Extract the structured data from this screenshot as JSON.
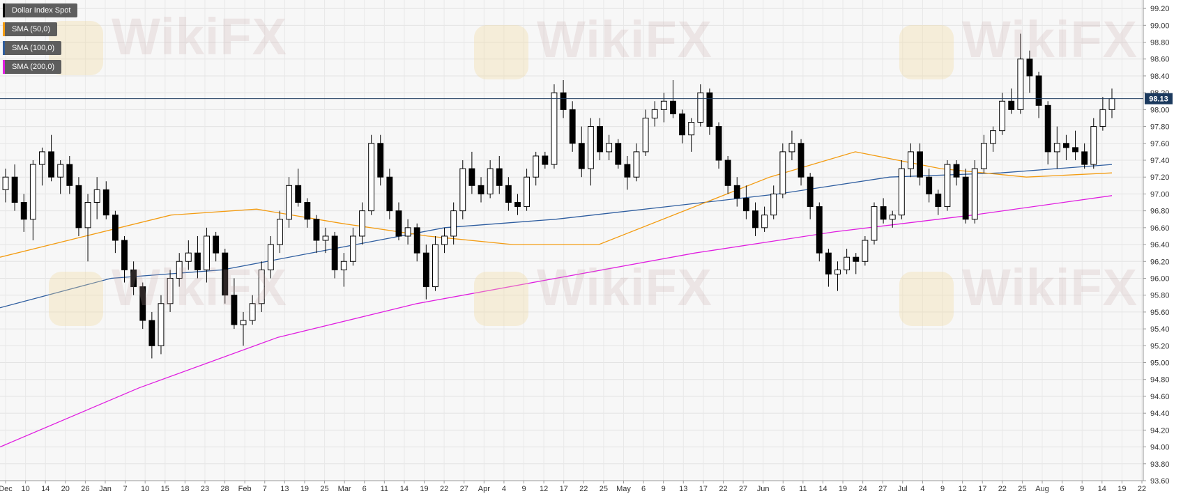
{
  "legend": [
    {
      "label": "Dollar Index Spot",
      "color": "#000000"
    },
    {
      "label": "SMA (50,0)",
      "color": "#f39c12"
    },
    {
      "label": "SMA (100,0)",
      "color": "#2e5d9f"
    },
    {
      "label": "SMA (200,0)",
      "color": "#e01ee0"
    }
  ],
  "watermark_text": "WikiFX",
  "current_price_label": "98.13",
  "chart_data": {
    "type": "candlestick",
    "title": "",
    "ylim": [
      93.6,
      99.3
    ],
    "y_ticks": [
      "93.60",
      "93.80",
      "94.00",
      "94.20",
      "94.40",
      "94.60",
      "94.80",
      "95.00",
      "95.20",
      "95.40",
      "95.60",
      "95.80",
      "96.00",
      "96.20",
      "96.40",
      "96.60",
      "96.80",
      "97.00",
      "97.20",
      "97.40",
      "97.60",
      "97.80",
      "98.00",
      "98.20",
      "98.40",
      "98.60",
      "98.80",
      "99.00",
      "99.20"
    ],
    "x_ticks": [
      "Dec",
      "10",
      "14",
      "20",
      "26",
      "Jan",
      "7",
      "10",
      "15",
      "18",
      "23",
      "28",
      "Feb",
      "7",
      "13",
      "19",
      "25",
      "Mar",
      "6",
      "11",
      "14",
      "19",
      "22",
      "27",
      "Apr",
      "4",
      "9",
      "12",
      "17",
      "22",
      "25",
      "May",
      "6",
      "9",
      "13",
      "17",
      "22",
      "27",
      "Jun",
      "6",
      "11",
      "14",
      "19",
      "24",
      "27",
      "Jul",
      "4",
      "9",
      "12",
      "17",
      "22",
      "25",
      "Aug",
      "6",
      "9",
      "14",
      "19",
      "22"
    ],
    "current_price": 98.13,
    "sma_50": [
      96.25,
      96.5,
      96.75,
      96.82,
      96.65,
      96.5,
      96.4,
      96.4,
      96.8,
      97.2,
      97.5,
      97.3,
      97.2,
      97.25
    ],
    "sma_100": [
      95.65,
      96.0,
      96.1,
      96.35,
      96.6,
      96.7,
      96.85,
      97.0,
      97.2,
      97.25,
      97.35
    ],
    "sma_200": [
      94.0,
      94.7,
      95.3,
      95.7,
      96.0,
      96.3,
      96.55,
      96.75,
      96.98
    ],
    "candles": [
      [
        97.05,
        97.3,
        96.9,
        97.2
      ],
      [
        97.2,
        97.35,
        96.8,
        96.9
      ],
      [
        96.9,
        97.0,
        96.55,
        96.7
      ],
      [
        96.7,
        97.4,
        96.45,
        97.35
      ],
      [
        97.35,
        97.55,
        97.1,
        97.5
      ],
      [
        97.5,
        97.7,
        97.15,
        97.2
      ],
      [
        97.2,
        97.4,
        97.0,
        97.35
      ],
      [
        97.35,
        97.45,
        97.0,
        97.1
      ],
      [
        97.1,
        97.2,
        96.5,
        96.6
      ],
      [
        96.6,
        97.0,
        96.2,
        96.9
      ],
      [
        96.9,
        97.2,
        96.7,
        97.05
      ],
      [
        97.05,
        97.15,
        96.7,
        96.75
      ],
      [
        96.75,
        96.8,
        96.3,
        96.45
      ],
      [
        96.45,
        96.5,
        95.95,
        96.1
      ],
      [
        96.1,
        96.2,
        95.8,
        95.9
      ],
      [
        95.9,
        95.95,
        95.4,
        95.5
      ],
      [
        95.5,
        95.6,
        95.05,
        95.2
      ],
      [
        95.2,
        95.8,
        95.1,
        95.7
      ],
      [
        95.7,
        96.1,
        95.6,
        96.0
      ],
      [
        96.0,
        96.3,
        95.9,
        96.2
      ],
      [
        96.2,
        96.45,
        96.1,
        96.3
      ],
      [
        96.3,
        96.5,
        96.0,
        96.1
      ],
      [
        96.1,
        96.6,
        95.95,
        96.5
      ],
      [
        96.5,
        96.55,
        96.2,
        96.3
      ],
      [
        96.3,
        96.35,
        95.7,
        95.8
      ],
      [
        95.8,
        96.0,
        95.4,
        95.45
      ],
      [
        95.45,
        95.6,
        95.2,
        95.5
      ],
      [
        95.5,
        95.8,
        95.45,
        95.7
      ],
      [
        95.7,
        96.2,
        95.6,
        96.1
      ],
      [
        96.1,
        96.5,
        96.0,
        96.4
      ],
      [
        96.4,
        96.8,
        96.3,
        96.7
      ],
      [
        96.7,
        97.2,
        96.6,
        97.1
      ],
      [
        97.1,
        97.3,
        96.85,
        96.9
      ],
      [
        96.9,
        96.95,
        96.6,
        96.7
      ],
      [
        96.7,
        96.75,
        96.3,
        96.45
      ],
      [
        96.45,
        96.6,
        96.3,
        96.5
      ],
      [
        96.5,
        96.55,
        96.0,
        96.1
      ],
      [
        96.1,
        96.3,
        95.9,
        96.2
      ],
      [
        96.2,
        96.6,
        96.15,
        96.5
      ],
      [
        96.5,
        96.9,
        96.4,
        96.8
      ],
      [
        96.8,
        97.7,
        96.75,
        97.6
      ],
      [
        97.6,
        97.7,
        97.1,
        97.2
      ],
      [
        97.2,
        97.3,
        96.7,
        96.8
      ],
      [
        96.8,
        96.9,
        96.45,
        96.5
      ],
      [
        96.5,
        96.7,
        96.4,
        96.6
      ],
      [
        96.6,
        96.65,
        96.2,
        96.3
      ],
      [
        96.3,
        96.4,
        95.75,
        95.9
      ],
      [
        95.9,
        96.5,
        95.85,
        96.4
      ],
      [
        96.4,
        96.6,
        96.3,
        96.5
      ],
      [
        96.5,
        96.9,
        96.4,
        96.8
      ],
      [
        96.8,
        97.4,
        96.7,
        97.3
      ],
      [
        97.3,
        97.5,
        97.0,
        97.1
      ],
      [
        97.1,
        97.2,
        96.9,
        97.0
      ],
      [
        97.0,
        97.4,
        96.95,
        97.3
      ],
      [
        97.3,
        97.45,
        97.0,
        97.1
      ],
      [
        97.1,
        97.2,
        96.8,
        96.9
      ],
      [
        96.9,
        97.0,
        96.75,
        96.85
      ],
      [
        96.85,
        97.3,
        96.8,
        97.2
      ],
      [
        97.2,
        97.5,
        97.1,
        97.45
      ],
      [
        97.45,
        97.5,
        97.3,
        97.35
      ],
      [
        97.35,
        98.3,
        97.3,
        98.2
      ],
      [
        98.2,
        98.35,
        97.9,
        98.0
      ],
      [
        98.0,
        98.1,
        97.5,
        97.6
      ],
      [
        97.6,
        97.8,
        97.2,
        97.3
      ],
      [
        97.3,
        97.9,
        97.1,
        97.8
      ],
      [
        97.8,
        97.9,
        97.4,
        97.5
      ],
      [
        97.5,
        97.7,
        97.4,
        97.6
      ],
      [
        97.6,
        97.65,
        97.3,
        97.35
      ],
      [
        97.35,
        97.45,
        97.05,
        97.2
      ],
      [
        97.2,
        97.6,
        97.15,
        97.5
      ],
      [
        97.5,
        98.0,
        97.45,
        97.9
      ],
      [
        97.9,
        98.1,
        97.8,
        98.0
      ],
      [
        98.0,
        98.2,
        97.85,
        98.1
      ],
      [
        98.1,
        98.35,
        97.9,
        97.95
      ],
      [
        97.95,
        98.0,
        97.6,
        97.7
      ],
      [
        97.7,
        97.9,
        97.5,
        97.85
      ],
      [
        97.85,
        98.3,
        97.8,
        98.2
      ],
      [
        98.2,
        98.25,
        97.7,
        97.8
      ],
      [
        97.8,
        97.85,
        97.3,
        97.4
      ],
      [
        97.4,
        97.45,
        97.0,
        97.1
      ],
      [
        97.1,
        97.2,
        96.85,
        96.95
      ],
      [
        96.95,
        97.1,
        96.7,
        96.8
      ],
      [
        96.8,
        96.9,
        96.5,
        96.6
      ],
      [
        96.6,
        96.85,
        96.55,
        96.75
      ],
      [
        96.75,
        97.1,
        96.7,
        97.0
      ],
      [
        97.0,
        97.6,
        96.95,
        97.5
      ],
      [
        97.5,
        97.75,
        97.4,
        97.6
      ],
      [
        97.6,
        97.65,
        97.1,
        97.2
      ],
      [
        97.2,
        97.25,
        96.7,
        96.85
      ],
      [
        96.85,
        96.9,
        96.2,
        96.3
      ],
      [
        96.3,
        96.35,
        95.9,
        96.05
      ],
      [
        96.05,
        96.2,
        95.85,
        96.1
      ],
      [
        96.1,
        96.35,
        96.05,
        96.25
      ],
      [
        96.25,
        96.3,
        96.05,
        96.2
      ],
      [
        96.2,
        96.5,
        96.15,
        96.45
      ],
      [
        96.45,
        96.9,
        96.4,
        96.85
      ],
      [
        96.85,
        96.95,
        96.65,
        96.7
      ],
      [
        96.7,
        96.8,
        96.6,
        96.75
      ],
      [
        96.75,
        97.4,
        96.7,
        97.3
      ],
      [
        97.3,
        97.6,
        97.2,
        97.5
      ],
      [
        97.5,
        97.6,
        97.1,
        97.2
      ],
      [
        97.2,
        97.3,
        96.9,
        97.0
      ],
      [
        97.0,
        97.05,
        96.75,
        96.85
      ],
      [
        96.85,
        97.4,
        96.8,
        97.35
      ],
      [
        97.35,
        97.4,
        97.1,
        97.2
      ],
      [
        97.2,
        97.3,
        96.65,
        96.7
      ],
      [
        96.7,
        97.4,
        96.65,
        97.3
      ],
      [
        97.3,
        97.7,
        97.25,
        97.6
      ],
      [
        97.6,
        97.8,
        97.5,
        97.75
      ],
      [
        97.75,
        98.2,
        97.7,
        98.1
      ],
      [
        98.1,
        98.25,
        97.95,
        98.0
      ],
      [
        98.0,
        98.9,
        97.95,
        98.6
      ],
      [
        98.6,
        98.7,
        98.2,
        98.4
      ],
      [
        98.4,
        98.45,
        97.9,
        98.05
      ],
      [
        98.05,
        98.1,
        97.35,
        97.5
      ],
      [
        97.5,
        97.8,
        97.3,
        97.6
      ],
      [
        97.6,
        97.7,
        97.4,
        97.55
      ],
      [
        97.55,
        97.75,
        97.4,
        97.5
      ],
      [
        97.5,
        97.6,
        97.3,
        97.35
      ],
      [
        97.35,
        97.9,
        97.3,
        97.8
      ],
      [
        97.8,
        98.15,
        97.75,
        98.0
      ],
      [
        98.0,
        98.25,
        97.9,
        98.13
      ]
    ]
  }
}
